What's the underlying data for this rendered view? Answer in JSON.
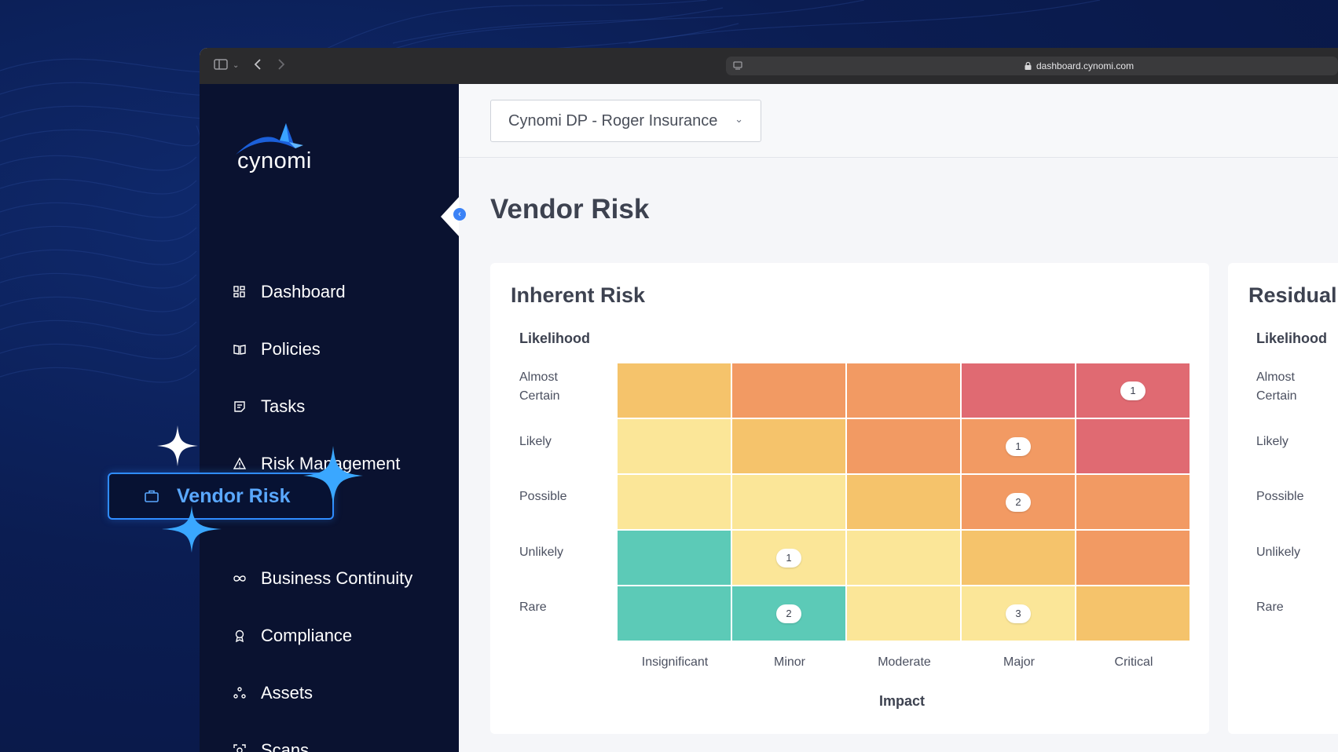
{
  "browser": {
    "url": "dashboard.cynomi.com"
  },
  "brand": {
    "name": "cynomi",
    "accent": "#2f8cff"
  },
  "sidebar": {
    "items": [
      {
        "label": "Dashboard",
        "icon": "dashboard-icon"
      },
      {
        "label": "Policies",
        "icon": "book-icon"
      },
      {
        "label": "Tasks",
        "icon": "tasks-icon"
      },
      {
        "label": "Risk Management",
        "icon": "warning-icon"
      },
      {
        "label": "Vendor Risk",
        "icon": "briefcase-icon",
        "active": true
      },
      {
        "label": "Business Continuity",
        "icon": "infinity-icon"
      },
      {
        "label": "Compliance",
        "icon": "award-icon"
      },
      {
        "label": "Assets",
        "icon": "nodes-icon"
      },
      {
        "label": "Scans",
        "icon": "scan-icon"
      }
    ]
  },
  "header": {
    "org_select": "Cynomi DP - Roger Insurance"
  },
  "page": {
    "title": "Vendor Risk"
  },
  "inherent": {
    "title": "Inherent Risk",
    "likelihood_label": "Likelihood",
    "impact_label": "Impact",
    "rows": [
      "Almost\nCertain",
      "Likely",
      "Possible",
      "Unlikely",
      "Rare"
    ],
    "columns": [
      "Insignificant",
      "Minor",
      "Moderate",
      "Major",
      "Critical"
    ],
    "colors": {
      "green": "#5ccab7",
      "yellow": "#fbe698",
      "light_orange": "#f5c36b",
      "orange": "#f29a63",
      "red": "#e06a72"
    },
    "matrix": [
      [
        "light_orange",
        "orange",
        "orange",
        "red",
        "red"
      ],
      [
        "yellow",
        "light_orange",
        "orange",
        "orange",
        "red"
      ],
      [
        "yellow",
        "yellow",
        "light_orange",
        "orange",
        "orange"
      ],
      [
        "green",
        "yellow",
        "yellow",
        "light_orange",
        "orange"
      ],
      [
        "green",
        "green",
        "yellow",
        "yellow",
        "light_orange"
      ]
    ],
    "counts": [
      [
        "",
        "",
        "",
        "",
        "1"
      ],
      [
        "",
        "",
        "",
        "1",
        ""
      ],
      [
        "",
        "",
        "",
        "2",
        ""
      ],
      [
        "",
        "1",
        "",
        "",
        ""
      ],
      [
        "",
        "2",
        "",
        "3",
        ""
      ]
    ]
  },
  "residual": {
    "title": "Residual",
    "likelihood_label": "Likelihood",
    "rows": [
      "Almost\nCertain",
      "Likely",
      "Possible",
      "Unlikely",
      "Rare"
    ]
  }
}
